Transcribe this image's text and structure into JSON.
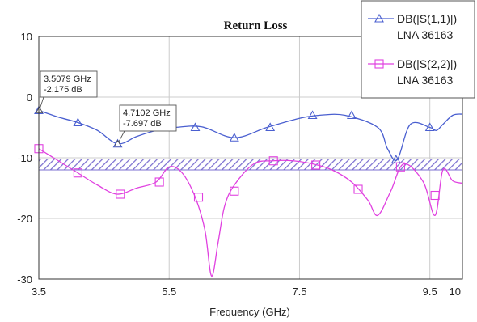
{
  "chart_data": {
    "type": "line",
    "title": "Return Loss",
    "xlabel": "Frequency (GHz)",
    "ylabel": "",
    "xlim": [
      3.5,
      10
    ],
    "ylim": [
      -30,
      10
    ],
    "x_ticks": [
      3.5,
      5.5,
      7.5,
      9.5,
      10
    ],
    "x_tick_labels": [
      "3.5",
      "5.5",
      "7.5",
      "9.5",
      "10"
    ],
    "y_ticks": [
      10,
      0,
      -10,
      -20,
      -30
    ],
    "y_tick_labels": [
      "10",
      "0",
      "-10",
      "-20",
      "-30"
    ],
    "x_gridlines": [
      3.5,
      5.5,
      7.5,
      9.5,
      10
    ],
    "y_gridlines": [
      10,
      0,
      -10,
      -20,
      -30
    ],
    "grid": true,
    "legend_position": "top-right",
    "spec_band": {
      "y_range": [
        -12,
        -10.2
      ],
      "x_range": [
        3.5,
        10
      ],
      "color": "#7b6fd0"
    },
    "series": [
      {
        "name": "DB(|S(1,1)|)",
        "sub_label": "LNA 36163",
        "color": "#4a5fd0",
        "marker": "triangle",
        "x": [
          3.5,
          3.8,
          4.1,
          4.4,
          4.71,
          5.0,
          5.3,
          5.6,
          6.0,
          6.5,
          7.0,
          7.5,
          7.8,
          8.2,
          8.7,
          8.85,
          9.0,
          9.2,
          9.5,
          9.6,
          9.7,
          9.85,
          10.0
        ],
        "y": [
          -2.2,
          -3.3,
          -4.2,
          -5.5,
          -7.7,
          -6.5,
          -5.5,
          -5.0,
          -4.9,
          -6.7,
          -5.0,
          -3.5,
          -3.0,
          -3.0,
          -5.0,
          -8.5,
          -10.3,
          -4.5,
          -5.0,
          -5.5,
          -4.5,
          -3.0,
          -2.8
        ],
        "marker_x": [
          3.5,
          4.1,
          4.71,
          5.9,
          6.5,
          7.05,
          7.7,
          8.3,
          8.98,
          9.5
        ],
        "marker_y": [
          -2.2,
          -4.2,
          -7.7,
          -5.0,
          -6.7,
          -5.0,
          -3.0,
          -3.0,
          -10.3,
          -5.0
        ]
      },
      {
        "name": "DB(|S(2,2)|)",
        "sub_label": "LNA 36163",
        "color": "#e040e0",
        "marker": "square",
        "x": [
          3.5,
          3.8,
          4.1,
          4.4,
          4.7,
          5.0,
          5.3,
          5.5,
          5.7,
          5.9,
          6.05,
          6.15,
          6.25,
          6.35,
          6.5,
          6.8,
          7.1,
          7.4,
          7.7,
          8.0,
          8.3,
          8.55,
          8.7,
          8.9,
          9.1,
          9.4,
          9.58,
          9.7,
          9.85,
          10.0
        ],
        "y": [
          -8.5,
          -10.5,
          -12.5,
          -14.5,
          -16.0,
          -15.0,
          -14.0,
          -11.5,
          -12.5,
          -16.5,
          -22.0,
          -29.5,
          -24.0,
          -18.0,
          -14.5,
          -11.0,
          -10.5,
          -10.5,
          -11.0,
          -12.0,
          -14.0,
          -17.0,
          -19.5,
          -15.5,
          -11.0,
          -14.0,
          -19.5,
          -12.0,
          -13.8,
          -14.2
        ],
        "marker_x": [
          3.5,
          4.1,
          4.75,
          5.35,
          5.95,
          6.5,
          7.1,
          7.75,
          8.4,
          9.05,
          9.58
        ],
        "marker_y": [
          -8.5,
          -12.5,
          -16.0,
          -14.0,
          -16.5,
          -15.5,
          -10.5,
          -11.2,
          -15.2,
          -11.5,
          -16.2
        ]
      }
    ],
    "annotations": [
      {
        "line1": "3.5079 GHz",
        "line2": "-2.175 dB",
        "x": 3.5079,
        "y": -2.175
      },
      {
        "line1": "4.7102 GHz",
        "line2": "-7.697 dB",
        "x": 4.7102,
        "y": -7.697
      }
    ]
  }
}
